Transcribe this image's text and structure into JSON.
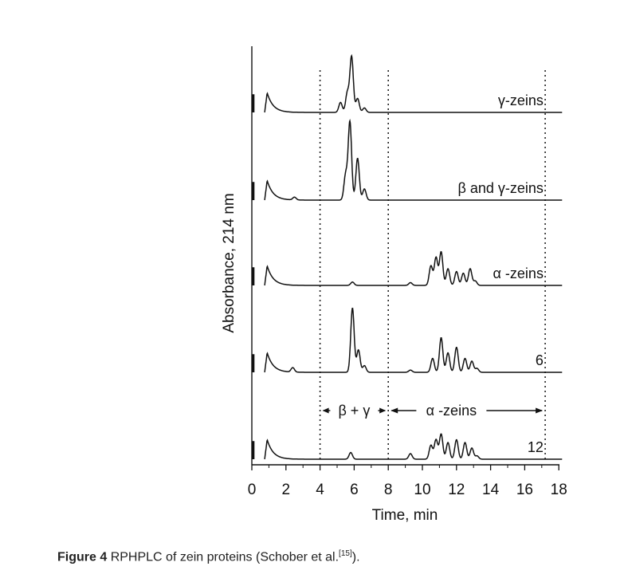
{
  "chart_data": {
    "type": "line",
    "xlabel": "Time, min",
    "ylabel": "Absorbance, 214 nm",
    "xlim": [
      0,
      18
    ],
    "xticks": [
      0,
      2,
      4,
      6,
      8,
      10,
      12,
      14,
      16,
      18
    ],
    "vlines": [
      4,
      8,
      17.2
    ],
    "grid": false,
    "series": [
      {
        "name": "γ-zeins",
        "peaks": [
          [
            5.2,
            0.18
          ],
          [
            5.6,
            0.35
          ],
          [
            5.85,
            1.0
          ],
          [
            6.2,
            0.25
          ],
          [
            6.6,
            0.08
          ]
        ]
      },
      {
        "name": "β and γ-zeins",
        "peaks": [
          [
            2.5,
            0.05
          ],
          [
            5.5,
            0.45
          ],
          [
            5.75,
            1.4
          ],
          [
            6.2,
            0.75
          ],
          [
            6.6,
            0.2
          ]
        ]
      },
      {
        "name": "α -zeins",
        "peaks": [
          [
            5.9,
            0.06
          ],
          [
            9.3,
            0.05
          ],
          [
            10.5,
            0.35
          ],
          [
            10.8,
            0.5
          ],
          [
            11.1,
            0.6
          ],
          [
            11.5,
            0.3
          ],
          [
            12.0,
            0.25
          ],
          [
            12.4,
            0.22
          ],
          [
            12.8,
            0.3
          ],
          [
            13.1,
            0.08
          ]
        ]
      },
      {
        "name": "6",
        "peaks": [
          [
            2.4,
            0.08
          ],
          [
            5.9,
            1.15
          ],
          [
            6.25,
            0.4
          ],
          [
            6.6,
            0.12
          ],
          [
            9.3,
            0.04
          ],
          [
            10.6,
            0.25
          ],
          [
            11.1,
            0.62
          ],
          [
            11.5,
            0.35
          ],
          [
            12.0,
            0.45
          ],
          [
            12.5,
            0.25
          ],
          [
            12.9,
            0.2
          ],
          [
            13.2,
            0.07
          ]
        ]
      },
      {
        "name": "12",
        "peaks": [
          [
            5.8,
            0.12
          ],
          [
            9.3,
            0.1
          ],
          [
            10.5,
            0.25
          ],
          [
            10.8,
            0.35
          ],
          [
            11.1,
            0.45
          ],
          [
            11.5,
            0.3
          ],
          [
            12.0,
            0.35
          ],
          [
            12.5,
            0.3
          ],
          [
            12.9,
            0.2
          ],
          [
            13.2,
            0.06
          ]
        ]
      }
    ],
    "regions": [
      {
        "label": "β + γ",
        "from": 4,
        "to": 8
      },
      {
        "label": "α -zeins",
        "from": 8,
        "to": 17.2
      }
    ]
  },
  "caption": {
    "fig": "Figure 4",
    "text": "RPHPLC of zein proteins (Schober et al.",
    "ref": "[15]",
    "end": ")."
  }
}
